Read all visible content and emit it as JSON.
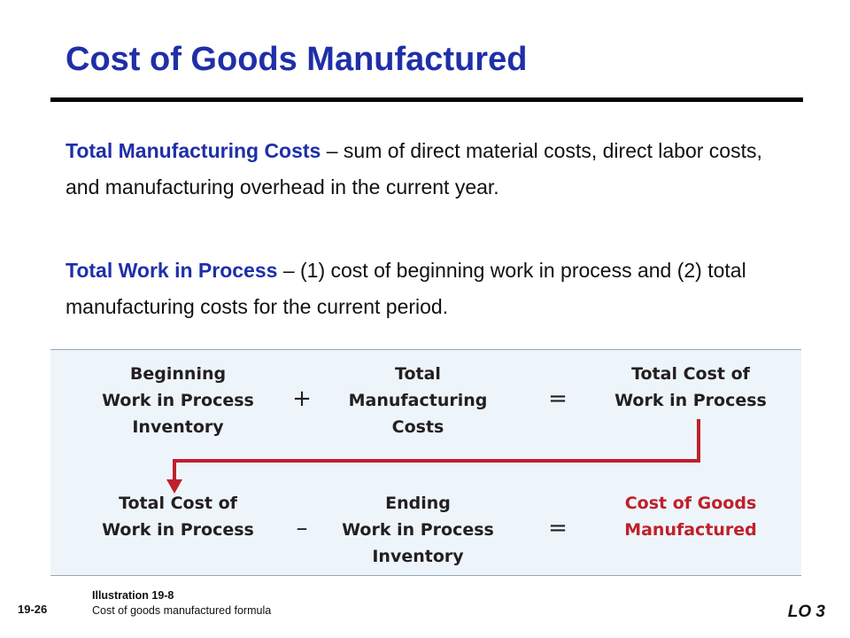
{
  "slide": {
    "title": "Cost of Goods Manufactured",
    "paragraphs": [
      {
        "term": "Total Manufacturing Costs",
        "text": " – sum of direct material costs, direct labor costs, and manufacturing overhead in the current year."
      },
      {
        "term": "Total Work in Process",
        "text": " – (1) cost of beginning work in process and (2) total manufacturing costs for the current period."
      }
    ]
  },
  "formula": {
    "row1": {
      "left": [
        "Beginning",
        "Work in Process",
        "Inventory"
      ],
      "op1": "+",
      "middle": [
        "Total",
        "Manufacturing",
        "Costs"
      ],
      "op2": "=",
      "right": [
        "Total Cost of",
        "Work in Process"
      ]
    },
    "row2": {
      "left": [
        "Total Cost of",
        "Work in Process"
      ],
      "op1": "–",
      "middle": [
        "Ending",
        "Work in Process",
        "Inventory"
      ],
      "op2": "=",
      "right": [
        "Cost of Goods",
        "Manufactured"
      ]
    },
    "arrow_color": "#c0202a",
    "result_color": "#c0202a"
  },
  "footer": {
    "slide_number": "19-26",
    "illustration_title": "Illustration 19-8",
    "illustration_caption": "Cost of goods manufactured formula",
    "learning_objective": "LO 3"
  }
}
